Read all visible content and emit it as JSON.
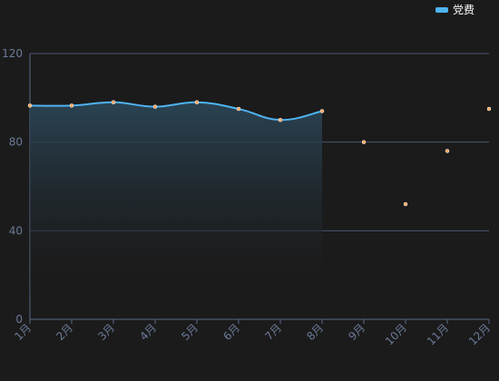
{
  "chart_data": {
    "type": "line",
    "categories": [
      "1月",
      "2月",
      "3月",
      "4月",
      "5月",
      "6月",
      "7月",
      "8月",
      "9月",
      "10月",
      "11月",
      "12月"
    ],
    "series": [
      {
        "name": "党费",
        "color": "#4fb3f0",
        "point_color": "#f5a35a",
        "values": [
          96.5,
          96.5,
          98,
          96,
          98,
          95,
          90,
          94,
          80,
          52,
          76,
          95
        ]
      }
    ],
    "line_until": 7,
    "smooth": true,
    "area": true,
    "ylim": [
      0,
      120
    ],
    "yticks": [
      0,
      40,
      80,
      120
    ],
    "grid": true,
    "legend": "top-right"
  }
}
